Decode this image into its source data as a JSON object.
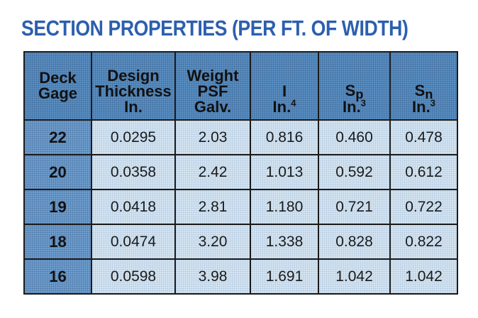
{
  "title": "SECTION PROPERTIES (PER FT. OF WIDTH)",
  "table": {
    "headers": {
      "deck_gage": [
        "Deck",
        "Gage"
      ],
      "design_thickness": [
        "Design",
        "Thickness",
        "In."
      ],
      "weight_psf": [
        "Weight",
        "PSF",
        "Galv."
      ],
      "i": {
        "symbol": "I",
        "unit": "In.",
        "exp": "4"
      },
      "sp": {
        "symbol": "S",
        "sub": "p",
        "unit": "In.",
        "exp": "3"
      },
      "sn": {
        "symbol": "S",
        "sub": "n",
        "unit": "In.",
        "exp": "3"
      }
    },
    "rows": [
      [
        "22",
        "0.0295",
        "2.03",
        "0.816",
        "0.460",
        "0.478"
      ],
      [
        "20",
        "0.0358",
        "2.42",
        "1.013",
        "0.592",
        "0.612"
      ],
      [
        "19",
        "0.0418",
        "2.81",
        "1.180",
        "0.721",
        "0.722"
      ],
      [
        "18",
        "0.0474",
        "3.20",
        "1.338",
        "0.828",
        "0.822"
      ],
      [
        "16",
        "0.0598",
        "3.98",
        "1.691",
        "1.042",
        "1.042"
      ]
    ]
  }
}
